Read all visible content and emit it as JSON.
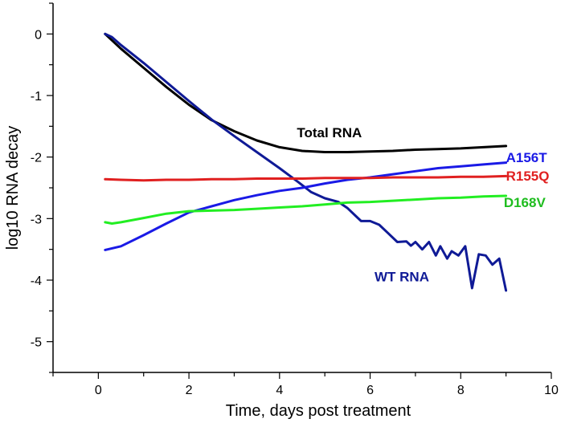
{
  "chart_data": {
    "type": "line",
    "title": "",
    "xlabel": "Time, days post treatment",
    "ylabel": "log10 RNA decay",
    "xlim": [
      -1,
      10
    ],
    "ylim": [
      -5.5,
      0.5
    ],
    "xticks": [
      0,
      2,
      4,
      6,
      8,
      10
    ],
    "yticks": [
      0,
      -1,
      -2,
      -3,
      -4,
      -5
    ],
    "xtick_labels": [
      "0",
      "2",
      "4",
      "6",
      "8",
      "10"
    ],
    "ytick_labels": [
      "0",
      "-1",
      "-2",
      "-3",
      "-4",
      "-5"
    ],
    "grid": false,
    "legend": "inline labels at line ends",
    "series": [
      {
        "name": "Total RNA",
        "color": "#000000",
        "points": [
          [
            0.15,
            0
          ],
          [
            0.5,
            -0.24
          ],
          [
            1,
            -0.55
          ],
          [
            1.5,
            -0.86
          ],
          [
            2,
            -1.15
          ],
          [
            2.5,
            -1.4
          ],
          [
            3,
            -1.58
          ],
          [
            3.5,
            -1.73
          ],
          [
            4,
            -1.84
          ],
          [
            4.5,
            -1.9
          ],
          [
            5,
            -1.92
          ],
          [
            5.5,
            -1.92
          ],
          [
            6,
            -1.91
          ],
          [
            6.5,
            -1.9
          ],
          [
            7,
            -1.88
          ],
          [
            7.5,
            -1.87
          ],
          [
            8,
            -1.86
          ],
          [
            8.5,
            -1.84
          ],
          [
            9,
            -1.82
          ]
        ]
      },
      {
        "name": "WT RNA",
        "color": "#0f1a96",
        "points": [
          [
            0.15,
            0
          ],
          [
            0.3,
            -0.05
          ],
          [
            0.5,
            -0.18
          ],
          [
            1,
            -0.47
          ],
          [
            1.5,
            -0.78
          ],
          [
            2,
            -1.09
          ],
          [
            2.5,
            -1.39
          ],
          [
            3,
            -1.66
          ],
          [
            3.5,
            -1.92
          ],
          [
            4,
            -2.18
          ],
          [
            4.4,
            -2.4
          ],
          [
            4.7,
            -2.57
          ],
          [
            5,
            -2.67
          ],
          [
            5.3,
            -2.73
          ],
          [
            5.5,
            -2.83
          ],
          [
            5.7,
            -2.97
          ],
          [
            5.8,
            -3.04
          ],
          [
            6,
            -3.04
          ],
          [
            6.2,
            -3.1
          ],
          [
            6.4,
            -3.24
          ],
          [
            6.6,
            -3.38
          ],
          [
            6.8,
            -3.37
          ],
          [
            6.9,
            -3.44
          ],
          [
            7,
            -3.38
          ],
          [
            7.15,
            -3.5
          ],
          [
            7.3,
            -3.38
          ],
          [
            7.45,
            -3.6
          ],
          [
            7.55,
            -3.45
          ],
          [
            7.7,
            -3.65
          ],
          [
            7.8,
            -3.53
          ],
          [
            7.95,
            -3.6
          ],
          [
            8.1,
            -3.45
          ],
          [
            8.25,
            -4.13
          ],
          [
            8.4,
            -3.58
          ],
          [
            8.55,
            -3.6
          ],
          [
            8.7,
            -3.75
          ],
          [
            8.85,
            -3.65
          ],
          [
            9,
            -4.17
          ]
        ]
      },
      {
        "name": "A156T",
        "color": "#1a1ae6",
        "points": [
          [
            0.15,
            -3.51
          ],
          [
            0.5,
            -3.45
          ],
          [
            1,
            -3.27
          ],
          [
            1.5,
            -3.08
          ],
          [
            2,
            -2.9
          ],
          [
            2.5,
            -2.8
          ],
          [
            3,
            -2.7
          ],
          [
            3.5,
            -2.62
          ],
          [
            4,
            -2.55
          ],
          [
            4.5,
            -2.5
          ],
          [
            5,
            -2.43
          ],
          [
            5.5,
            -2.37
          ],
          [
            6,
            -2.33
          ],
          [
            6.5,
            -2.28
          ],
          [
            7,
            -2.23
          ],
          [
            7.5,
            -2.18
          ],
          [
            8,
            -2.15
          ],
          [
            8.5,
            -2.12
          ],
          [
            9,
            -2.09
          ]
        ]
      },
      {
        "name": "R155Q",
        "color": "#e02020",
        "points": [
          [
            0.15,
            -2.36
          ],
          [
            0.5,
            -2.37
          ],
          [
            1,
            -2.38
          ],
          [
            1.5,
            -2.37
          ],
          [
            2,
            -2.37
          ],
          [
            2.5,
            -2.36
          ],
          [
            3,
            -2.36
          ],
          [
            3.5,
            -2.35
          ],
          [
            4,
            -2.35
          ],
          [
            4.5,
            -2.35
          ],
          [
            5,
            -2.34
          ],
          [
            5.5,
            -2.34
          ],
          [
            6,
            -2.34
          ],
          [
            6.5,
            -2.33
          ],
          [
            7,
            -2.33
          ],
          [
            7.5,
            -2.33
          ],
          [
            8,
            -2.32
          ],
          [
            8.5,
            -2.32
          ],
          [
            9,
            -2.31
          ]
        ]
      },
      {
        "name": "D168V",
        "color": "#22ee22",
        "points": [
          [
            0.15,
            -3.06
          ],
          [
            0.3,
            -3.08
          ],
          [
            0.5,
            -3.06
          ],
          [
            1,
            -2.99
          ],
          [
            1.5,
            -2.92
          ],
          [
            2,
            -2.88
          ],
          [
            2.5,
            -2.87
          ],
          [
            3,
            -2.86
          ],
          [
            3.5,
            -2.84
          ],
          [
            4,
            -2.82
          ],
          [
            4.5,
            -2.8
          ],
          [
            5,
            -2.77
          ],
          [
            5.5,
            -2.74
          ],
          [
            6,
            -2.73
          ],
          [
            6.5,
            -2.71
          ],
          [
            7,
            -2.69
          ],
          [
            7.5,
            -2.67
          ],
          [
            8,
            -2.66
          ],
          [
            8.5,
            -2.64
          ],
          [
            9,
            -2.63
          ]
        ]
      }
    ],
    "series_labels": [
      {
        "text": "Total RNA",
        "color": "#000000",
        "x": 5.1,
        "y": -1.68,
        "anchor": "middle"
      },
      {
        "text": "A156T",
        "color": "#1a1ae6",
        "x": 9.0,
        "y": -2.08,
        "anchor": "start"
      },
      {
        "text": "R155Q",
        "color": "#e02020",
        "x": 9.0,
        "y": -2.38,
        "anchor": "start"
      },
      {
        "text": "D168V",
        "color": "#1fbd1f",
        "x": 8.95,
        "y": -2.81,
        "anchor": "start"
      },
      {
        "text": "WT RNA",
        "color": "#0f1a96",
        "x": 6.7,
        "y": -4.02,
        "anchor": "middle"
      }
    ]
  }
}
